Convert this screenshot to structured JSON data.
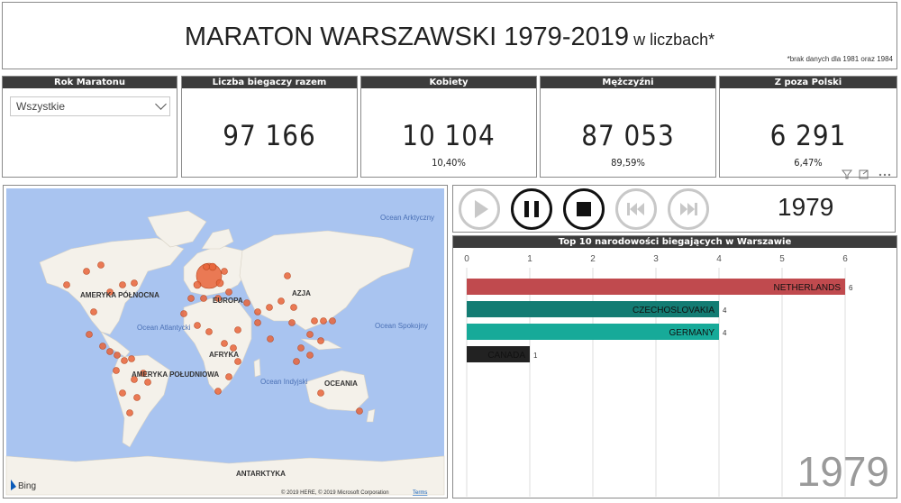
{
  "title": {
    "main": "MARATON WARSZAWSKI 1979-2019",
    "sub": "w liczbach*",
    "note": "*brak danych dla 1981 oraz 1984"
  },
  "slicer": {
    "header": "Rok Maratonu",
    "value": "Wszystkie"
  },
  "kpis": [
    {
      "header": "Liczba biegaczy razem",
      "value": "97 166",
      "pct": ""
    },
    {
      "header": "Kobiety",
      "value": "10 104",
      "pct": "10,40%"
    },
    {
      "header": "Mężczyźni",
      "value": "87 053",
      "pct": "89,59%"
    },
    {
      "header": "Z poza Polski",
      "value": "6 291",
      "pct": "6,47%"
    }
  ],
  "map": {
    "labels": [
      "AMERYKA PÓŁNOCNA",
      "EUROPA",
      "AZJA",
      "AFRYKA",
      "AMERYKA POŁUDNIOWA",
      "OCEANIA",
      "ANTARKTYKA"
    ],
    "oceans": [
      "Ocean Arktyczny",
      "Ocean Atlantycki",
      "Ocean Spokojny",
      "Ocean Indyjski"
    ],
    "bing": "Bing",
    "copyright": "© 2019 HERE, © 2019 Microsoft Corporation",
    "terms": "Terms",
    "colors": {
      "water": "#a9c4f0",
      "land": "#f4f1ea",
      "dot": "#e8643a"
    }
  },
  "player": {
    "year": "1979"
  },
  "toolbar_icons": [
    "filter-icon",
    "focus-icon",
    "more-icon"
  ],
  "chart_data": {
    "type": "bar",
    "title": "Top 10 narodowości biegających w Warszawie",
    "orientation": "horizontal",
    "xlim": [
      0,
      6
    ],
    "xticks": [
      0,
      1,
      2,
      3,
      4,
      5,
      6
    ],
    "categories": [
      "NETHERLANDS",
      "CZECHOSLOVAKIA",
      "GERMANY",
      "CANADA"
    ],
    "values": [
      6,
      4,
      4,
      1
    ],
    "colors": [
      "#c04a4e",
      "#137c73",
      "#17aa99",
      "#222222"
    ],
    "watermark": "1979",
    "grid": true
  }
}
